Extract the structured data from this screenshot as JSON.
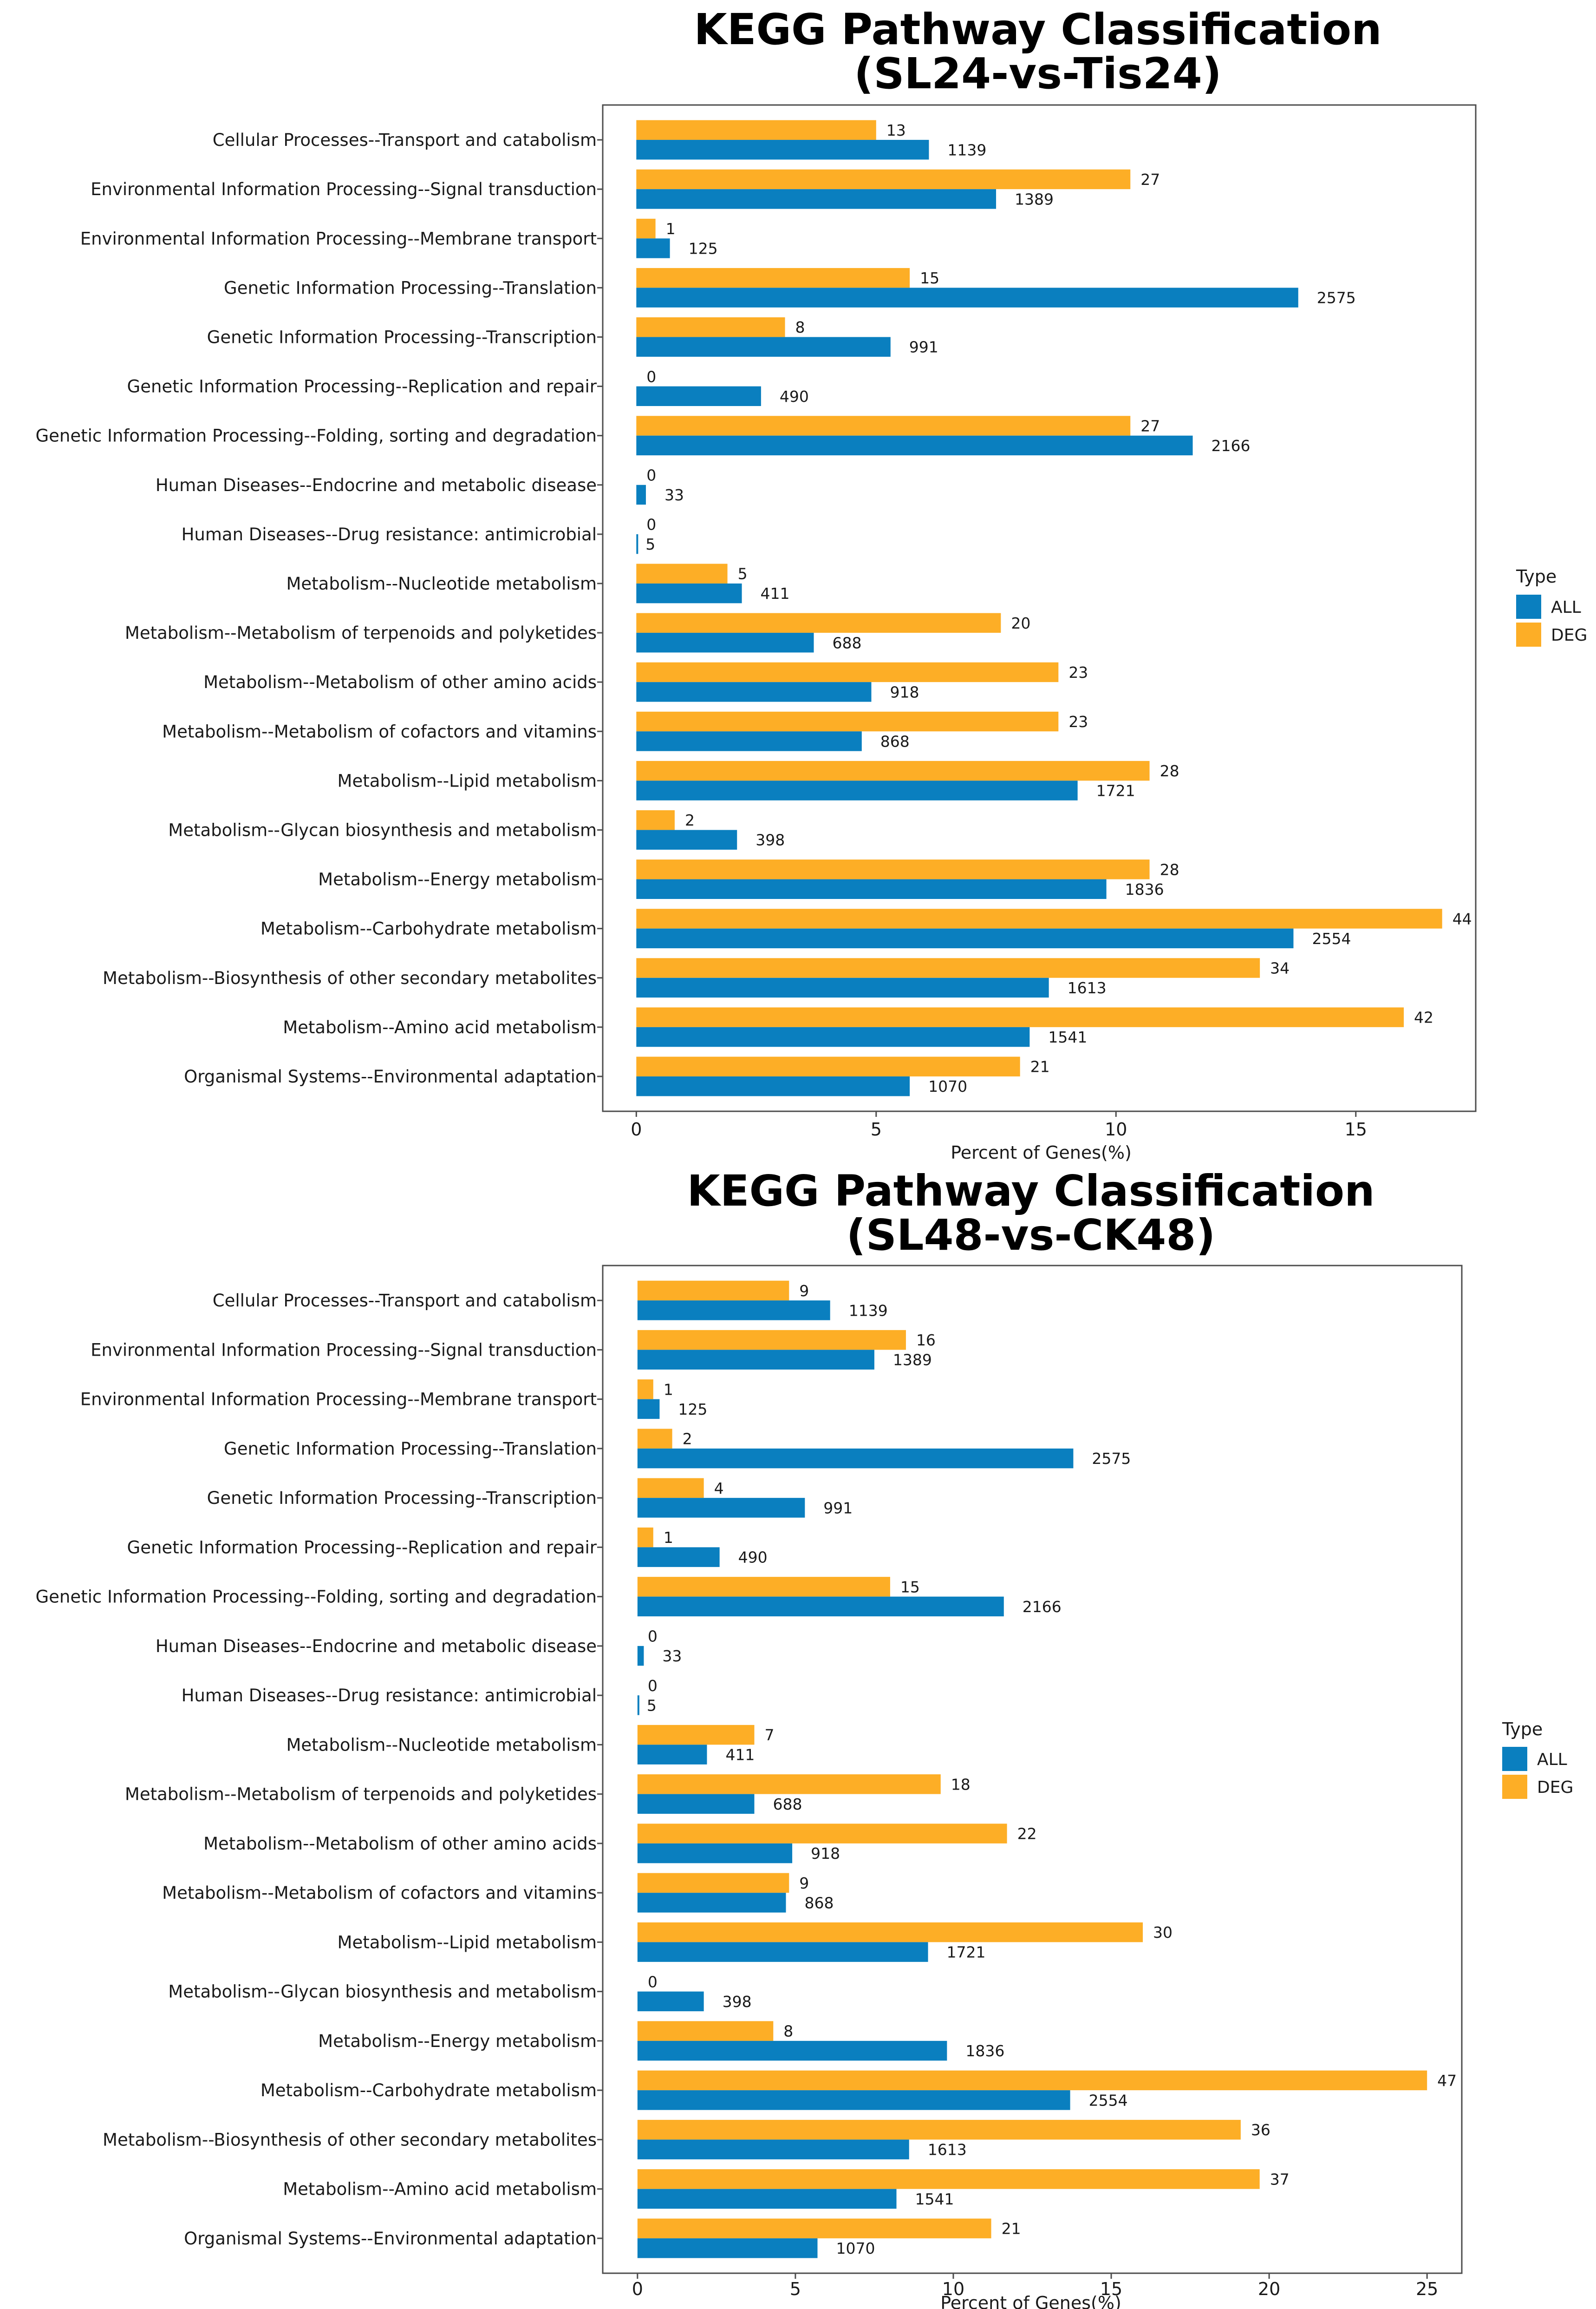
{
  "colors": {
    "ALL": "#0A7FBF",
    "DEG": "#FDAE26",
    "frame": "#4d4d4d"
  },
  "legend": {
    "title": "Type",
    "labels": [
      "ALL",
      "DEG"
    ]
  },
  "chart_data": [
    {
      "type": "bar",
      "orientation": "horizontal",
      "title_line1": "KEGG Pathway Classification",
      "title_line2": "(SL24-vs-Tis24)",
      "xlabel": "Percent of Genes(%)",
      "ylabel": "",
      "xlim": [
        -0.7,
        17.5
      ],
      "xticks": [
        0,
        5,
        10,
        15
      ],
      "grid": false,
      "legend_position": "right",
      "categories": [
        "Cellular Processes--Transport and catabolism",
        "Environmental Information Processing--Signal transduction",
        "Environmental Information Processing--Membrane transport",
        "Genetic Information Processing--Translation",
        "Genetic Information Processing--Transcription",
        "Genetic Information Processing--Replication and repair",
        "Genetic Information Processing--Folding, sorting and degradation",
        "Human Diseases--Endocrine and metabolic disease",
        "Human Diseases--Drug resistance: antimicrobial",
        "Metabolism--Nucleotide metabolism",
        "Metabolism--Metabolism of terpenoids and polyketides",
        "Metabolism--Metabolism of other amino acids",
        "Metabolism--Metabolism of cofactors and vitamins",
        "Metabolism--Lipid metabolism",
        "Metabolism--Glycan biosynthesis and metabolism",
        "Metabolism--Energy metabolism",
        "Metabolism--Carbohydrate metabolism",
        "Metabolism--Biosynthesis of other secondary metabolites",
        "Metabolism--Amino acid metabolism",
        "Organismal Systems--Environmental adaptation"
      ],
      "series": [
        {
          "name": "DEG",
          "values": [
            5.0,
            10.3,
            0.4,
            5.7,
            3.1,
            0.0,
            10.3,
            0.0,
            0.0,
            1.9,
            7.6,
            8.8,
            8.8,
            10.7,
            0.8,
            10.7,
            16.8,
            13.0,
            16.0,
            8.0
          ],
          "labels": [
            "13",
            "27",
            "1",
            "15",
            "8",
            "0",
            "27",
            "0",
            "0",
            "5",
            "20",
            "23",
            "23",
            "28",
            "2",
            "28",
            "44",
            "34",
            "42",
            "21"
          ]
        },
        {
          "name": "ALL",
          "values": [
            6.1,
            7.5,
            0.7,
            13.8,
            5.3,
            2.6,
            11.6,
            0.2,
            0.03,
            2.2,
            3.7,
            4.9,
            4.7,
            9.2,
            2.1,
            9.8,
            13.7,
            8.6,
            8.2,
            5.7
          ],
          "labels": [
            "1139",
            "1389",
            "125",
            "2575",
            "991",
            "490",
            "2166",
            "33",
            "5",
            "411",
            "688",
            "918",
            "868",
            "1721",
            "398",
            "1836",
            "2554",
            "1613",
            "1541",
            "1070"
          ]
        }
      ]
    },
    {
      "type": "bar",
      "orientation": "horizontal",
      "title_line1": "KEGG Pathway Classification",
      "title_line2": "(SL48-vs-CK48)",
      "xlabel": "Percent of Genes(%)",
      "ylabel": "",
      "xlim": [
        -1.1,
        26.1
      ],
      "xticks": [
        0,
        5,
        10,
        15,
        20,
        25
      ],
      "grid": false,
      "legend_position": "right",
      "categories": [
        "Cellular Processes--Transport and catabolism",
        "Environmental Information Processing--Signal transduction",
        "Environmental Information Processing--Membrane transport",
        "Genetic Information Processing--Translation",
        "Genetic Information Processing--Transcription",
        "Genetic Information Processing--Replication and repair",
        "Genetic Information Processing--Folding, sorting and degradation",
        "Human Diseases--Endocrine and metabolic disease",
        "Human Diseases--Drug resistance: antimicrobial",
        "Metabolism--Nucleotide metabolism",
        "Metabolism--Metabolism of terpenoids and polyketides",
        "Metabolism--Metabolism of other amino acids",
        "Metabolism--Metabolism of cofactors and vitamins",
        "Metabolism--Lipid metabolism",
        "Metabolism--Glycan biosynthesis and metabolism",
        "Metabolism--Energy metabolism",
        "Metabolism--Carbohydrate metabolism",
        "Metabolism--Biosynthesis of other secondary metabolites",
        "Metabolism--Amino acid metabolism",
        "Organismal Systems--Environmental adaptation"
      ],
      "series": [
        {
          "name": "DEG",
          "values": [
            4.8,
            8.5,
            0.5,
            1.1,
            2.1,
            0.5,
            8.0,
            0.0,
            0.0,
            3.7,
            9.6,
            11.7,
            4.8,
            16.0,
            0.0,
            4.3,
            25.0,
            19.1,
            19.7,
            11.2
          ],
          "labels": [
            "9",
            "16",
            "1",
            "2",
            "4",
            "1",
            "15",
            "0",
            "0",
            "7",
            "18",
            "22",
            "9",
            "30",
            "0",
            "8",
            "47",
            "36",
            "37",
            "21"
          ]
        },
        {
          "name": "ALL",
          "values": [
            6.1,
            7.5,
            0.7,
            13.8,
            5.3,
            2.6,
            11.6,
            0.2,
            0.03,
            2.2,
            3.7,
            4.9,
            4.7,
            9.2,
            2.1,
            9.8,
            13.7,
            8.6,
            8.2,
            5.7
          ],
          "labels": [
            "1139",
            "1389",
            "125",
            "2575",
            "991",
            "490",
            "2166",
            "33",
            "5",
            "411",
            "688",
            "918",
            "868",
            "1721",
            "398",
            "1836",
            "2554",
            "1613",
            "1541",
            "1070"
          ]
        }
      ]
    }
  ]
}
